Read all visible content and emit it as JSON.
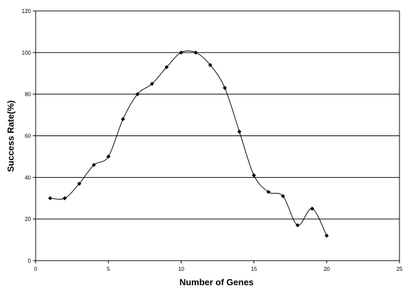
{
  "chart_data": {
    "type": "line",
    "title": "",
    "xlabel": "Number of Genes",
    "ylabel": "Success Rate(%)",
    "xlim": [
      0,
      25
    ],
    "ylim": [
      0,
      120
    ],
    "x_ticks": [
      "0",
      "5",
      "10",
      "15",
      "20",
      "25"
    ],
    "y_ticks": [
      "0",
      "20",
      "40",
      "60",
      "80",
      "100",
      "120"
    ],
    "grid": "horizontal",
    "smoothed": true,
    "marker": "diamond",
    "series": [
      {
        "x": [
          1,
          2,
          3,
          4,
          5,
          6,
          7,
          8,
          9,
          10,
          11,
          12,
          13,
          14,
          15,
          16,
          17,
          18,
          19,
          20
        ],
        "y": [
          30,
          30,
          37,
          46,
          50,
          68,
          80,
          85,
          93,
          100,
          100,
          94,
          83,
          62,
          41,
          33,
          31,
          17,
          25,
          12
        ]
      }
    ]
  }
}
